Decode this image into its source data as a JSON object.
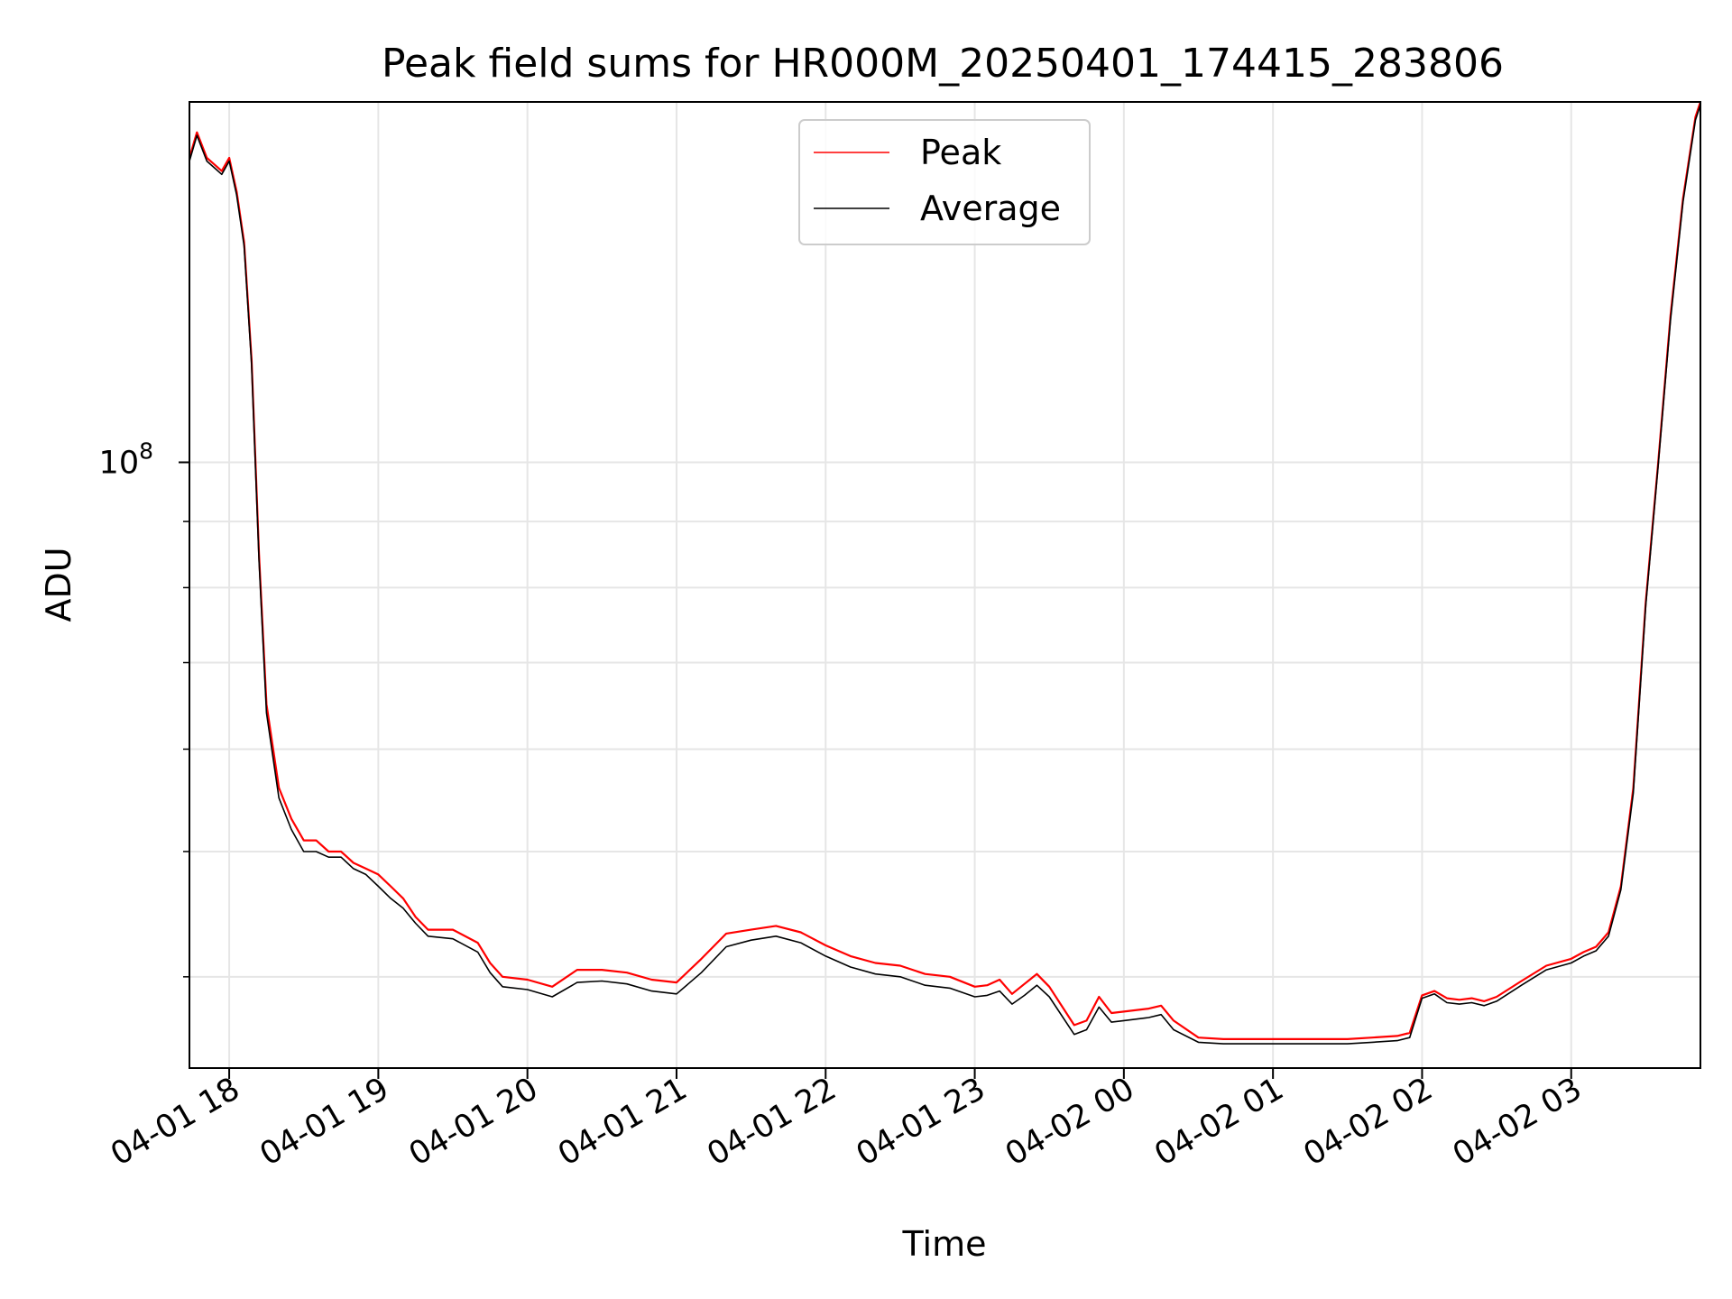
{
  "chart_data": {
    "type": "line",
    "title": "Peak field sums for HR000M_20250401_174415_283806",
    "xlabel": "Time",
    "ylabel": "ADU",
    "y_scale": "log",
    "ylim": [
      34000000,
      190000000
    ],
    "xlim": [
      "2025-04-01 17:44",
      "2025-04-02 03:52"
    ],
    "grid": true,
    "legend_position": "top-center",
    "x_ticks": [
      "04-01 18",
      "04-01 19",
      "04-01 20",
      "04-01 21",
      "04-01 22",
      "04-01 23",
      "04-02 00",
      "04-02 01",
      "04-02 02",
      "04-02 03"
    ],
    "y_ticks": [
      {
        "value": 100000000,
        "label": "10^8"
      }
    ],
    "series": [
      {
        "name": "Peak",
        "color": "#ff0000",
        "x": [
          "2025-04-01 17:44",
          "2025-04-01 17:47",
          "2025-04-01 17:51",
          "2025-04-01 17:54",
          "2025-04-01 17:57",
          "2025-04-01 18:00",
          "2025-04-01 18:03",
          "2025-04-01 18:06",
          "2025-04-01 18:09",
          "2025-04-01 18:12",
          "2025-04-01 18:15",
          "2025-04-01 18:20",
          "2025-04-01 18:25",
          "2025-04-01 18:30",
          "2025-04-01 18:35",
          "2025-04-01 18:40",
          "2025-04-01 18:45",
          "2025-04-01 18:50",
          "2025-04-01 18:55",
          "2025-04-01 19:00",
          "2025-04-01 19:05",
          "2025-04-01 19:10",
          "2025-04-01 19:15",
          "2025-04-01 19:20",
          "2025-04-01 19:30",
          "2025-04-01 19:40",
          "2025-04-01 19:45",
          "2025-04-01 19:50",
          "2025-04-01 20:00",
          "2025-04-01 20:10",
          "2025-04-01 20:20",
          "2025-04-01 20:30",
          "2025-04-01 20:40",
          "2025-04-01 20:50",
          "2025-04-01 21:00",
          "2025-04-01 21:10",
          "2025-04-01 21:20",
          "2025-04-01 21:30",
          "2025-04-01 21:40",
          "2025-04-01 21:50",
          "2025-04-01 22:00",
          "2025-04-01 22:10",
          "2025-04-01 22:20",
          "2025-04-01 22:30",
          "2025-04-01 22:40",
          "2025-04-01 22:50",
          "2025-04-01 23:00",
          "2025-04-01 23:05",
          "2025-04-01 23:10",
          "2025-04-01 23:15",
          "2025-04-01 23:20",
          "2025-04-01 23:25",
          "2025-04-01 23:30",
          "2025-04-01 23:40",
          "2025-04-01 23:45",
          "2025-04-01 23:50",
          "2025-04-01 23:55",
          "2025-04-02 00:00",
          "2025-04-02 00:10",
          "2025-04-02 00:15",
          "2025-04-02 00:20",
          "2025-04-02 00:30",
          "2025-04-02 00:40",
          "2025-04-02 00:50",
          "2025-04-02 01:00",
          "2025-04-02 01:10",
          "2025-04-02 01:20",
          "2025-04-02 01:30",
          "2025-04-02 01:40",
          "2025-04-02 01:50",
          "2025-04-02 01:55",
          "2025-04-02 02:00",
          "2025-04-02 02:05",
          "2025-04-02 02:10",
          "2025-04-02 02:15",
          "2025-04-02 02:20",
          "2025-04-02 02:25",
          "2025-04-02 02:30",
          "2025-04-02 02:40",
          "2025-04-02 02:50",
          "2025-04-02 03:00",
          "2025-04-02 03:05",
          "2025-04-02 03:10",
          "2025-04-02 03:15",
          "2025-04-02 03:20",
          "2025-04-02 03:25",
          "2025-04-02 03:30",
          "2025-04-02 03:35",
          "2025-04-02 03:40",
          "2025-04-02 03:45",
          "2025-04-02 03:50",
          "2025-04-02 03:52"
        ],
        "y": [
          172000000,
          180000000,
          172000000,
          170000000,
          168000000,
          172000000,
          162000000,
          148000000,
          120000000,
          85000000,
          65000000,
          56000000,
          53000000,
          51000000,
          51000000,
          50000000,
          50000000,
          49000000,
          48500000,
          48000000,
          47000000,
          46000000,
          44500000,
          43500000,
          43500000,
          42500000,
          41000000,
          40000000,
          39800000,
          39300000,
          40500000,
          40500000,
          40300000,
          39800000,
          39600000,
          41300000,
          43200000,
          43500000,
          43800000,
          43300000,
          42300000,
          41500000,
          41000000,
          40800000,
          40200000,
          40000000,
          39300000,
          39400000,
          39800000,
          38800000,
          39500000,
          40200000,
          39300000,
          36700000,
          37000000,
          38600000,
          37500000,
          37600000,
          37800000,
          38000000,
          37000000,
          35900000,
          35800000,
          35800000,
          35800000,
          35800000,
          35800000,
          35800000,
          35900000,
          36000000,
          36200000,
          38700000,
          39000000,
          38500000,
          38400000,
          38500000,
          38300000,
          38600000,
          39700000,
          40800000,
          41300000,
          41800000,
          42200000,
          43300000,
          47000000,
          56000000,
          78000000,
          100000000,
          130000000,
          160000000,
          185000000,
          190000000
        ]
      },
      {
        "name": "Average",
        "color": "#000000",
        "x": [
          "2025-04-01 17:44",
          "2025-04-01 17:47",
          "2025-04-01 17:51",
          "2025-04-01 17:54",
          "2025-04-01 17:57",
          "2025-04-01 18:00",
          "2025-04-01 18:03",
          "2025-04-01 18:06",
          "2025-04-01 18:09",
          "2025-04-01 18:12",
          "2025-04-01 18:15",
          "2025-04-01 18:20",
          "2025-04-01 18:25",
          "2025-04-01 18:30",
          "2025-04-01 18:35",
          "2025-04-01 18:40",
          "2025-04-01 18:45",
          "2025-04-01 18:50",
          "2025-04-01 18:55",
          "2025-04-01 19:00",
          "2025-04-01 19:05",
          "2025-04-01 19:10",
          "2025-04-01 19:15",
          "2025-04-01 19:20",
          "2025-04-01 19:30",
          "2025-04-01 19:40",
          "2025-04-01 19:45",
          "2025-04-01 19:50",
          "2025-04-01 20:00",
          "2025-04-01 20:10",
          "2025-04-01 20:20",
          "2025-04-01 20:30",
          "2025-04-01 20:40",
          "2025-04-01 20:50",
          "2025-04-01 21:00",
          "2025-04-01 21:10",
          "2025-04-01 21:20",
          "2025-04-01 21:30",
          "2025-04-01 21:40",
          "2025-04-01 21:50",
          "2025-04-01 22:00",
          "2025-04-01 22:10",
          "2025-04-01 22:20",
          "2025-04-01 22:30",
          "2025-04-01 22:40",
          "2025-04-01 22:50",
          "2025-04-01 23:00",
          "2025-04-01 23:05",
          "2025-04-01 23:10",
          "2025-04-01 23:15",
          "2025-04-01 23:20",
          "2025-04-01 23:25",
          "2025-04-01 23:30",
          "2025-04-01 23:40",
          "2025-04-01 23:45",
          "2025-04-01 23:50",
          "2025-04-01 23:55",
          "2025-04-02 00:00",
          "2025-04-02 00:10",
          "2025-04-02 00:15",
          "2025-04-02 00:20",
          "2025-04-02 00:30",
          "2025-04-02 00:40",
          "2025-04-02 00:50",
          "2025-04-02 01:00",
          "2025-04-02 01:10",
          "2025-04-02 01:20",
          "2025-04-02 01:30",
          "2025-04-02 01:40",
          "2025-04-02 01:50",
          "2025-04-02 01:55",
          "2025-04-02 02:00",
          "2025-04-02 02:05",
          "2025-04-02 02:10",
          "2025-04-02 02:15",
          "2025-04-02 02:20",
          "2025-04-02 02:25",
          "2025-04-02 02:30",
          "2025-04-02 02:40",
          "2025-04-02 02:50",
          "2025-04-02 03:00",
          "2025-04-02 03:05",
          "2025-04-02 03:10",
          "2025-04-02 03:15",
          "2025-04-02 03:20",
          "2025-04-02 03:25",
          "2025-04-02 03:30",
          "2025-04-02 03:35",
          "2025-04-02 03:40",
          "2025-04-02 03:45",
          "2025-04-02 03:50",
          "2025-04-02 03:52"
        ],
        "y": [
          171000000,
          179000000,
          171000000,
          169000000,
          167000000,
          171000000,
          161000000,
          147000000,
          119000000,
          84000000,
          64000000,
          55000000,
          52000000,
          50000000,
          50000000,
          49500000,
          49500000,
          48500000,
          48000000,
          47000000,
          46000000,
          45200000,
          44000000,
          43000000,
          42800000,
          41800000,
          40300000,
          39300000,
          39100000,
          38600000,
          39600000,
          39700000,
          39500000,
          39000000,
          38800000,
          40300000,
          42200000,
          42700000,
          43000000,
          42500000,
          41500000,
          40700000,
          40200000,
          40000000,
          39400000,
          39200000,
          38600000,
          38700000,
          39000000,
          38100000,
          38700000,
          39400000,
          38600000,
          36100000,
          36400000,
          37900000,
          36900000,
          37000000,
          37200000,
          37400000,
          36400000,
          35600000,
          35500000,
          35500000,
          35500000,
          35500000,
          35500000,
          35500000,
          35600000,
          35700000,
          35900000,
          38500000,
          38800000,
          38200000,
          38100000,
          38200000,
          38000000,
          38300000,
          39400000,
          40500000,
          41000000,
          41500000,
          41900000,
          43000000,
          46700000,
          55500000,
          77500000,
          99500000,
          129000000,
          159000000,
          184000000,
          189000000
        ]
      }
    ]
  }
}
